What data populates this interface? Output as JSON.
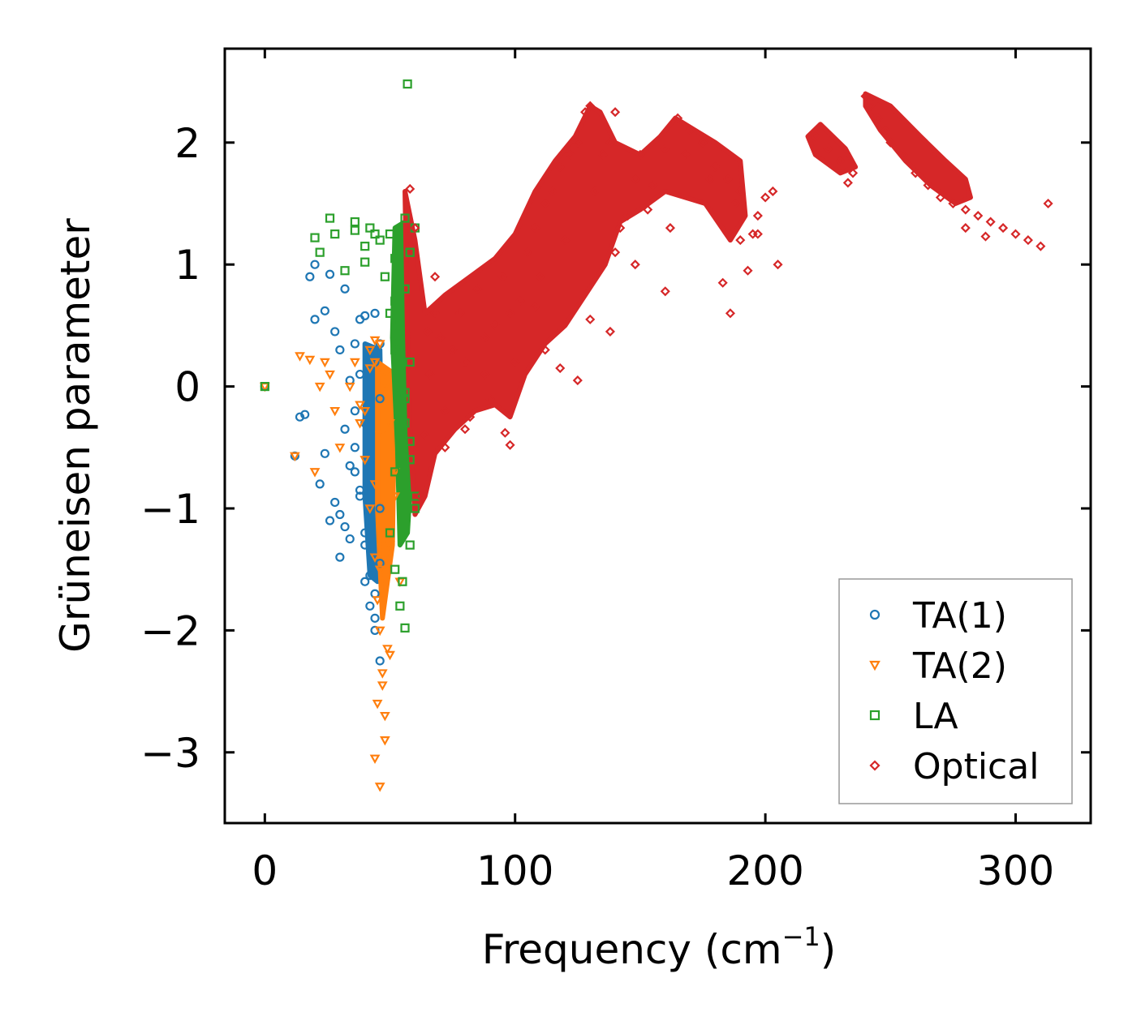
{
  "chart_data": {
    "type": "scatter",
    "title": "",
    "xlabel": "Frequency (cm",
    "xlabel_sup": "−1",
    "xlabel_close": ")",
    "ylabel": "Grüneisen parameter",
    "xlim": [
      -16,
      330
    ],
    "ylim": [
      -3.58,
      2.77
    ],
    "xticks": [
      0,
      100,
      200,
      300
    ],
    "xtick_labels": [
      "0",
      "100",
      "200",
      "300"
    ],
    "yticks": [
      -3,
      -2,
      -1,
      0,
      1,
      2
    ],
    "ytick_labels": [
      "−3",
      "−2",
      "−1",
      "0",
      "1",
      "2"
    ],
    "grid": false,
    "legend_position": "lower-right",
    "series": [
      {
        "name": "TA(1)",
        "marker": "circle",
        "color": "#1f77b4",
        "x": [
          0,
          12,
          14,
          18,
          20,
          24,
          26,
          28,
          30,
          32,
          34,
          36,
          38,
          40,
          42,
          44,
          46,
          24,
          28,
          32,
          36,
          40,
          44,
          30,
          34,
          38,
          42,
          46,
          22,
          26,
          30,
          34,
          38,
          42,
          46,
          36,
          40,
          44,
          38,
          42,
          46,
          40,
          44,
          42,
          44,
          46,
          40,
          36,
          32,
          20,
          16
        ],
        "y": [
          0,
          -0.57,
          -0.25,
          0.9,
          0.55,
          0.62,
          0.92,
          0.45,
          0.3,
          -0.35,
          0.05,
          -0.5,
          -0.9,
          -1.3,
          -1.55,
          -1.9,
          -2.25,
          -0.55,
          -0.95,
          -1.15,
          -0.7,
          -0.3,
          0.2,
          -1.4,
          -1.25,
          -0.85,
          -0.15,
          0.35,
          -0.8,
          -1.1,
          -1.05,
          -0.65,
          0.1,
          0.25,
          -0.1,
          0.35,
          0.58,
          0.6,
          0.55,
          -0.6,
          -1.0,
          -1.6,
          -1.7,
          -1.8,
          -2.0,
          -1.45,
          -1.2,
          -0.2,
          0.8,
          1.0,
          -0.23
        ]
      },
      {
        "name": "TA(2)",
        "marker": "triangle-down",
        "color": "#ff7f0e",
        "x": [
          0,
          12,
          14,
          18,
          20,
          22,
          24,
          26,
          28,
          30,
          34,
          36,
          38,
          40,
          42,
          44,
          45,
          46,
          47,
          48,
          50,
          52,
          44,
          46,
          48,
          50,
          45,
          47,
          49,
          46,
          48,
          44,
          46,
          48,
          44,
          46,
          48,
          50,
          52,
          54,
          40,
          42,
          44,
          38,
          42
        ],
        "y": [
          0,
          -0.57,
          0.25,
          0.22,
          -0.7,
          0.0,
          0.2,
          0.1,
          -0.2,
          -0.5,
          0.0,
          0.2,
          -0.3,
          -0.6,
          -1.0,
          -1.4,
          -1.75,
          -2.0,
          -2.35,
          -2.7,
          -1.3,
          -0.9,
          -3.05,
          -3.28,
          -2.9,
          -2.2,
          -2.6,
          -2.45,
          -2.15,
          -1.5,
          -1.2,
          -0.8,
          -0.4,
          0.0,
          0.2,
          0.35,
          0.1,
          -0.3,
          -0.7,
          -1.6,
          -0.2,
          0.3,
          0.38,
          -0.15,
          0.15
        ]
      },
      {
        "name": "LA",
        "marker": "square",
        "color": "#2ca02c",
        "x": [
          0,
          20,
          22,
          26,
          28,
          32,
          36,
          40,
          42,
          46,
          48,
          50,
          52,
          54,
          56,
          58,
          60,
          50,
          52,
          54,
          56,
          58,
          60,
          52,
          54,
          56,
          58,
          54,
          56,
          58,
          60,
          56,
          58,
          52,
          54,
          56,
          58,
          57,
          50,
          52,
          55,
          44,
          40,
          36
        ],
        "y": [
          0,
          1.22,
          1.1,
          1.38,
          1.25,
          0.95,
          1.35,
          1.02,
          1.3,
          1.2,
          0.9,
          0.6,
          0.3,
          0.0,
          -0.3,
          -0.6,
          -0.9,
          -1.2,
          -1.5,
          -1.8,
          -1.98,
          -1.3,
          -1.0,
          -0.7,
          -0.4,
          -0.1,
          0.2,
          0.5,
          0.8,
          1.1,
          1.3,
          1.38,
          1.1,
          0.7,
          0.35,
          -0.05,
          -0.45,
          2.48,
          1.25,
          1.05,
          -1.6,
          1.25,
          1.15,
          1.28
        ]
      },
      {
        "name": "Optical",
        "marker": "diamond",
        "color": "#d62728",
        "x": [
          58,
          60,
          62,
          64,
          66,
          68,
          70,
          72,
          75,
          78,
          80,
          82,
          85,
          88,
          90,
          92,
          95,
          98,
          100,
          102,
          105,
          108,
          110,
          112,
          115,
          118,
          120,
          122,
          125,
          128,
          130,
          132,
          135,
          138,
          140,
          142,
          145,
          148,
          150,
          155,
          160,
          165,
          168,
          170,
          175,
          180,
          185,
          188,
          190,
          195,
          200,
          203,
          205,
          220,
          225,
          230,
          235,
          240,
          242,
          245,
          248,
          250,
          255,
          260,
          265,
          270,
          275,
          280,
          285,
          290,
          295,
          300,
          305,
          310,
          313,
          98,
          96,
          160,
          148,
          138,
          125,
          183,
          186,
          193,
          197,
          233,
          288,
          280,
          65,
          68,
          72,
          80,
          88,
          108,
          112,
          118,
          130,
          140,
          153,
          162,
          178,
          190,
          197
        ],
        "y": [
          1.62,
          1.3,
          -0.9,
          -0.4,
          0.1,
          0.6,
          0.4,
          -0.5,
          0.3,
          0.6,
          0.2,
          -0.25,
          0.8,
          0.4,
          -0.1,
          0.5,
          0.9,
          0.6,
          0.2,
          0.7,
          1.1,
          1.3,
          0.9,
          1.5,
          1.6,
          1.8,
          1.2,
          1.9,
          2.0,
          2.25,
          2.3,
          1.6,
          1.9,
          2.0,
          2.25,
          1.3,
          1.4,
          1.7,
          1.9,
          1.65,
          1.95,
          2.2,
          1.9,
          2.1,
          2.0,
          1.8,
          1.7,
          1.5,
          1.2,
          1.25,
          1.55,
          1.6,
          1.0,
          2.05,
          1.95,
          1.85,
          1.75,
          2.38,
          2.3,
          2.2,
          2.1,
          2.0,
          1.9,
          1.75,
          1.65,
          1.55,
          1.5,
          1.45,
          1.4,
          1.35,
          1.3,
          1.25,
          1.2,
          1.15,
          1.5,
          -0.48,
          -0.38,
          0.78,
          1.0,
          0.45,
          0.05,
          0.85,
          0.6,
          0.95,
          1.25,
          1.67,
          1.23,
          1.3,
          0.45,
          0.9,
          -0.2,
          -0.35,
          0.1,
          0.65,
          0.3,
          0.15,
          0.55,
          1.1,
          1.45,
          1.3,
          1.7,
          1.6,
          1.4
        ]
      }
    ]
  }
}
